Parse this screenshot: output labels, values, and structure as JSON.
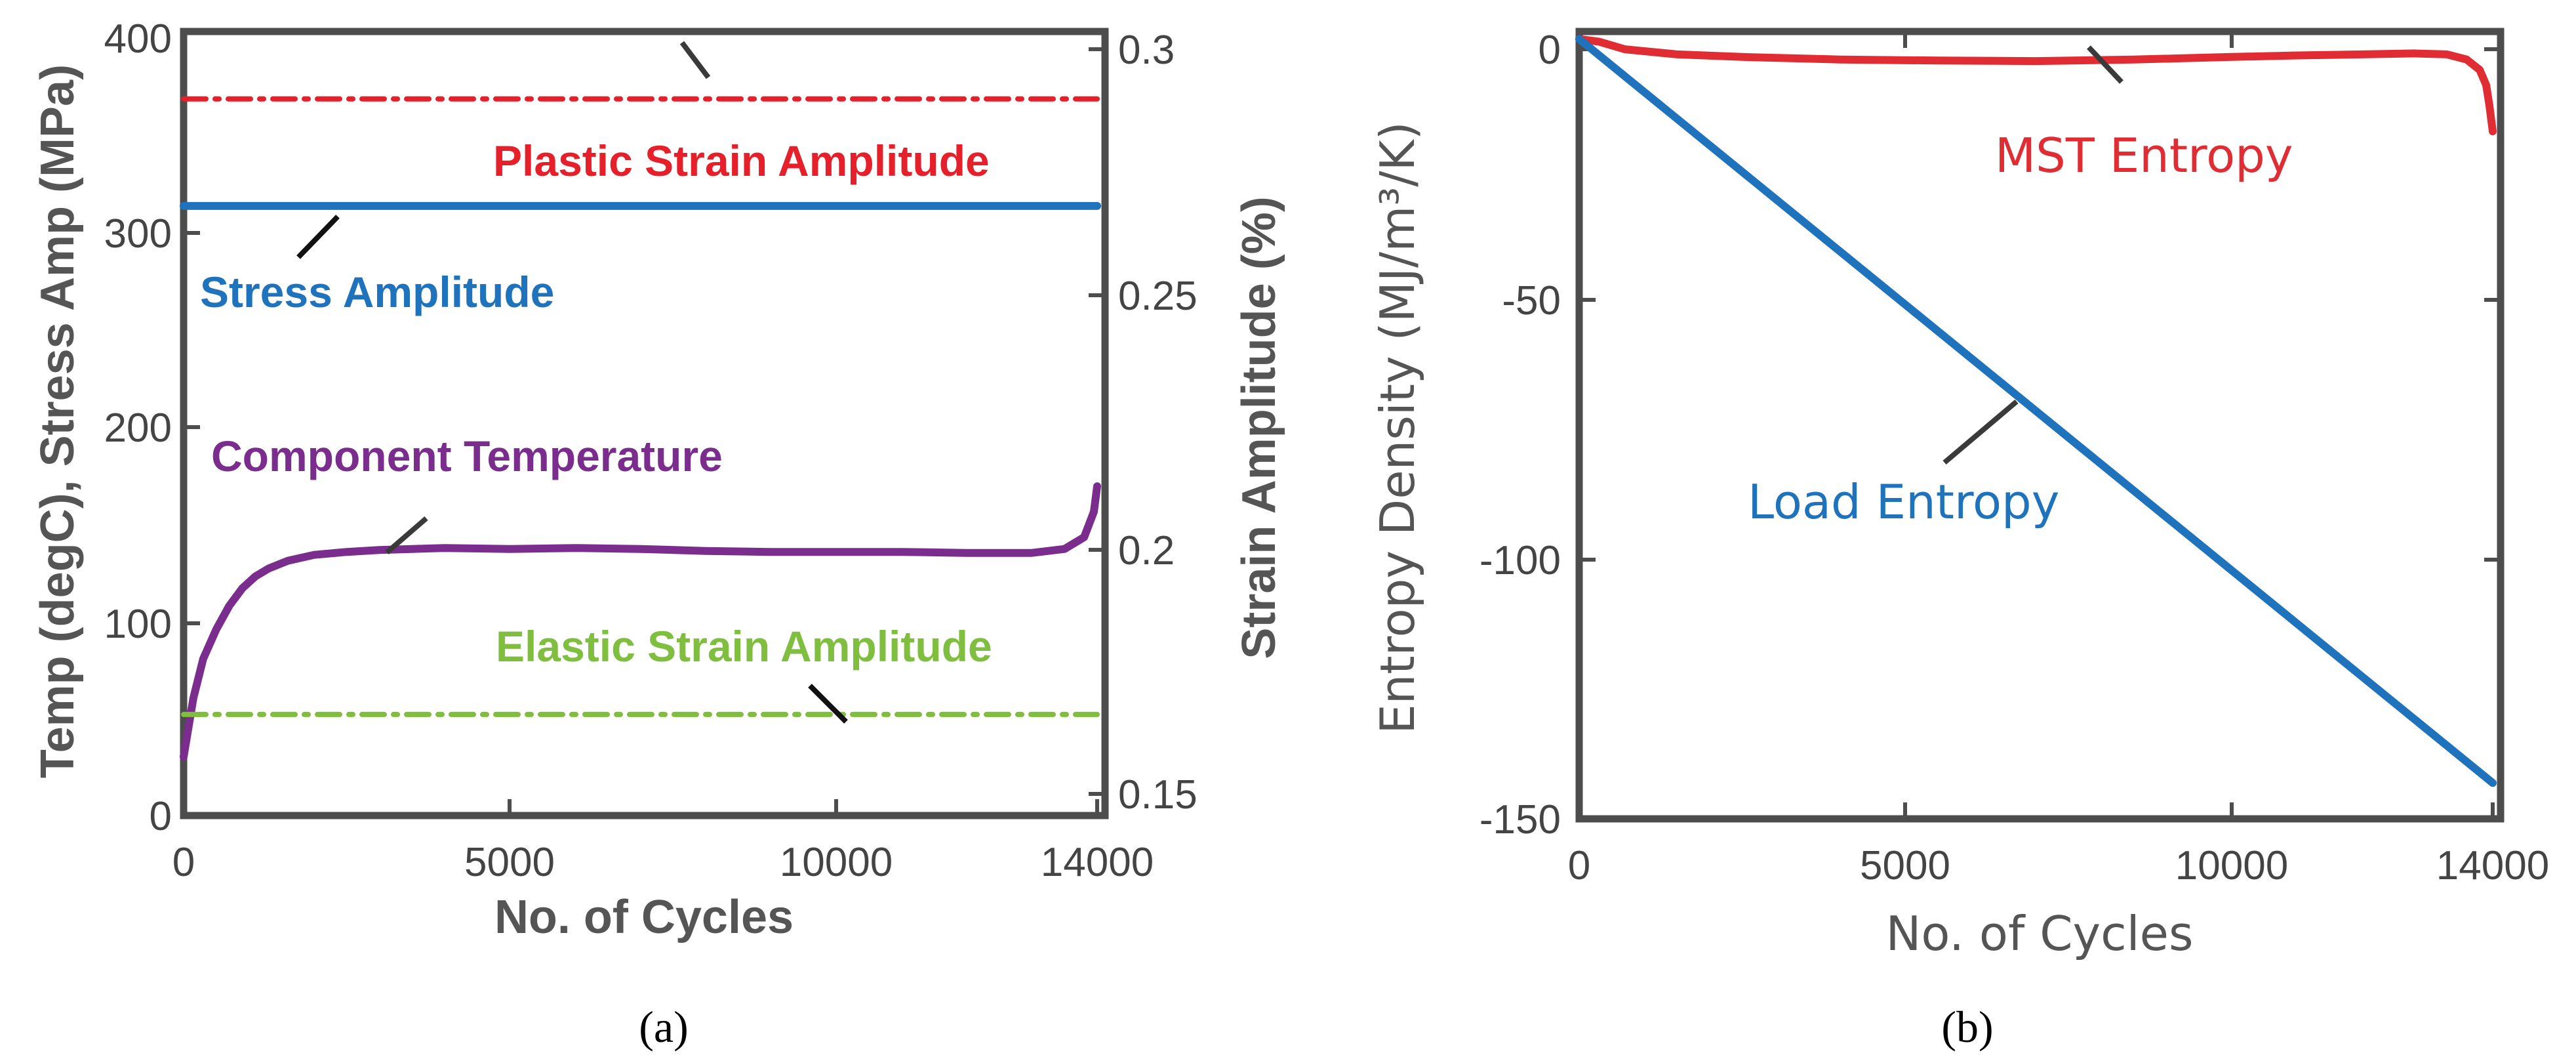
{
  "chart_data": [
    {
      "id": "a",
      "type": "line",
      "subcaption": "(a)",
      "xlabel": "No. of Cycles",
      "ylabel": "Temp (degC), Stress Amp (MPa)",
      "ylabel_right": "Strain Amplitude (%)",
      "xlim": [
        0,
        14000
      ],
      "ylim": [
        0,
        400
      ],
      "ylim_right": [
        0.15,
        0.3
      ],
      "xticks": [
        0,
        5000,
        10000,
        14000
      ],
      "xtick_labels": [
        "0",
        "5000",
        "10000",
        "14000"
      ],
      "yticks": [
        0,
        100,
        200,
        300,
        400
      ],
      "ytick_labels": [
        "0",
        "100",
        "200",
        "300",
        "400"
      ],
      "yticks_right": [
        0.15,
        0.2,
        0.25,
        0.3
      ],
      "ytick_labels_right": [
        "0.15",
        "0.2",
        "0.25",
        "0.3"
      ],
      "series": [
        {
          "name": "Plastic Strain Amplitude",
          "axis": "right",
          "color": "#e5202a",
          "style": "dashdot",
          "x": [
            0,
            14000
          ],
          "y": [
            0.29,
            0.29
          ]
        },
        {
          "name": "Stress Amplitude",
          "axis": "left",
          "color": "#1f72bc",
          "style": "solid",
          "x": [
            0,
            14000
          ],
          "y": [
            311,
            311
          ]
        },
        {
          "name": "Component Temperature",
          "axis": "left",
          "color": "#7b2d8e",
          "style": "solid",
          "x": [
            0,
            150,
            300,
            500,
            700,
            900,
            1100,
            1300,
            1600,
            2000,
            2500,
            3000,
            3500,
            4000,
            5000,
            6000,
            7000,
            8000,
            9000,
            10000,
            11000,
            12000,
            13000,
            13500,
            13800,
            13950,
            14000
          ],
          "y": [
            30,
            60,
            80,
            95,
            107,
            116,
            122,
            126,
            130,
            133,
            134.5,
            135.5,
            136,
            136.5,
            136,
            136.5,
            136,
            135,
            134.5,
            134.5,
            134.5,
            134,
            134,
            136,
            142,
            155,
            168
          ]
        },
        {
          "name": "Elastic Strain Amplitude",
          "axis": "right",
          "color": "#7fbe3f",
          "style": "dashdot",
          "x": [
            0,
            14000
          ],
          "y": [
            0.166,
            0.166
          ]
        }
      ],
      "annotations": [
        {
          "text": "Plastic Strain Amplitude",
          "color": "#e5202a"
        },
        {
          "text": "Stress Amplitude",
          "color": "#1f72bc"
        },
        {
          "text": "Component Temperature",
          "color": "#7b2d8e"
        },
        {
          "text": "Elastic Strain Amplitude",
          "color": "#7fbe3f"
        }
      ]
    },
    {
      "id": "b",
      "type": "line",
      "subcaption": "(b)",
      "xlabel": "No. of Cycles",
      "ylabel": "Entropy Density (MJ/m³/K)",
      "xlim": [
        0,
        14000
      ],
      "ylim": [
        -150,
        5
      ],
      "xticks": [
        0,
        5000,
        10000,
        14000
      ],
      "xtick_labels": [
        "0",
        "5000",
        "10000",
        "14000"
      ],
      "yticks": [
        -150,
        -100,
        -50,
        0
      ],
      "ytick_labels": [
        "-150",
        "-100",
        "-50",
        "0"
      ],
      "series": [
        {
          "name": "MST Entropy",
          "color": "#e02c33",
          "style": "solid",
          "x": [
            0,
            300,
            700,
            1500,
            2500,
            4000,
            5500,
            7000,
            8500,
            10000,
            11000,
            12000,
            12800,
            13300,
            13600,
            13800,
            13900,
            13950,
            14000
          ],
          "y": [
            2,
            1.5,
            0,
            -1,
            -1.5,
            -2,
            -2.2,
            -2.3,
            -2,
            -1.5,
            -1.2,
            -1,
            -0.8,
            -1,
            -2,
            -4,
            -7,
            -11,
            -16
          ]
        },
        {
          "name": "Load Entropy",
          "color": "#1f72bc",
          "style": "solid",
          "x": [
            0,
            14000
          ],
          "y": [
            2,
            -143
          ]
        }
      ],
      "annotations": [
        {
          "text": "MST Entropy",
          "color": "#e02c33"
        },
        {
          "text": "Load Entropy",
          "color": "#1f72bc"
        }
      ]
    }
  ]
}
